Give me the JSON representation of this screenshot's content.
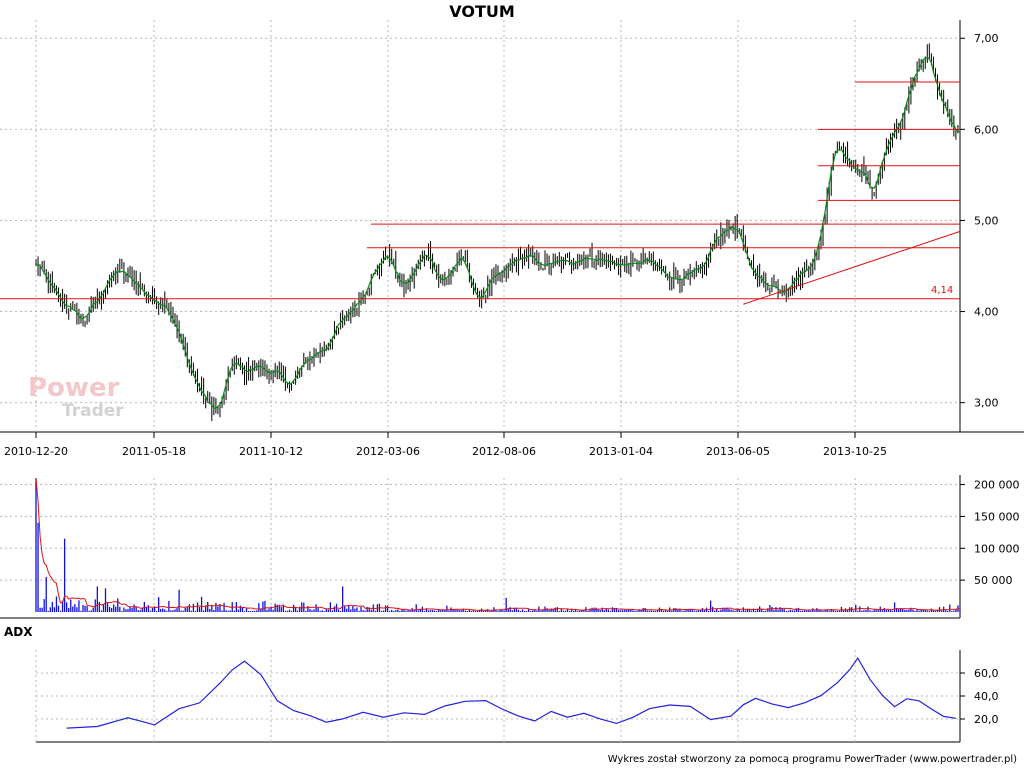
{
  "chart_data": [
    {
      "type": "candlestick",
      "title": "VOTUM",
      "x_ticks": [
        "2010-12-20",
        "2011-05-18",
        "2011-10-12",
        "2012-03-06",
        "2012-08-06",
        "2013-01-04",
        "2013-06-05",
        "2013-10-25"
      ],
      "y_ticks": [
        "3,00",
        "4,00",
        "5,00",
        "6,00",
        "7,00"
      ],
      "ylim": [
        2.7,
        7.2
      ],
      "grid": true,
      "close_path": [
        [
          0,
          4.55
        ],
        [
          8,
          4.25
        ],
        [
          16,
          4.05
        ],
        [
          24,
          3.9
        ],
        [
          32,
          4.2
        ],
        [
          40,
          4.45
        ],
        [
          48,
          4.35
        ],
        [
          56,
          4.15
        ],
        [
          64,
          4.1
        ],
        [
          70,
          3.75
        ],
        [
          78,
          3.25
        ],
        [
          84,
          3.0
        ],
        [
          90,
          2.9
        ],
        [
          96,
          3.45
        ],
        [
          102,
          3.35
        ],
        [
          110,
          3.4
        ],
        [
          118,
          3.3
        ],
        [
          126,
          3.2
        ],
        [
          132,
          3.45
        ],
        [
          138,
          3.55
        ],
        [
          144,
          3.65
        ],
        [
          150,
          3.9
        ],
        [
          156,
          4.05
        ],
        [
          160,
          4.2
        ],
        [
          164,
          4.35
        ],
        [
          172,
          4.65
        ],
        [
          180,
          4.25
        ],
        [
          186,
          4.45
        ],
        [
          192,
          4.7
        ],
        [
          198,
          4.3
        ],
        [
          204,
          4.45
        ],
        [
          210,
          4.6
        ],
        [
          216,
          4.1
        ],
        [
          222,
          4.3
        ],
        [
          228,
          4.4
        ],
        [
          234,
          4.55
        ],
        [
          240,
          4.6
        ],
        [
          250,
          4.5
        ],
        [
          260,
          4.55
        ],
        [
          270,
          4.6
        ],
        [
          280,
          4.55
        ],
        [
          290,
          4.5
        ],
        [
          300,
          4.55
        ],
        [
          310,
          4.4
        ],
        [
          318,
          4.35
        ],
        [
          326,
          4.45
        ],
        [
          334,
          4.85
        ],
        [
          342,
          4.95
        ],
        [
          348,
          4.6
        ],
        [
          354,
          4.35
        ],
        [
          360,
          4.3
        ],
        [
          366,
          4.25
        ],
        [
          372,
          4.35
        ],
        [
          378,
          4.5
        ],
        [
          382,
          4.6
        ],
        [
          386,
          5.1
        ],
        [
          390,
          5.75
        ],
        [
          394,
          5.85
        ],
        [
          398,
          5.6
        ],
        [
          404,
          5.55
        ],
        [
          410,
          5.3
        ],
        [
          416,
          5.8
        ],
        [
          422,
          6.0
        ],
        [
          428,
          6.45
        ],
        [
          432,
          6.65
        ],
        [
          436,
          6.85
        ],
        [
          440,
          6.5
        ],
        [
          444,
          6.3
        ],
        [
          448,
          6.1
        ],
        [
          452,
          5.95
        ]
      ],
      "levels": [
        4.14,
        4.7,
        4.96,
        5.22,
        5.6,
        6.0,
        6.52
      ],
      "trendline": {
        "from": [
          346,
          4.08
        ],
        "to": [
          452,
          4.88
        ]
      },
      "annotation": "4,14"
    },
    {
      "type": "bar",
      "name": "volume",
      "y_ticks": [
        "50 000",
        "100 000",
        "150 000",
        "200 000"
      ],
      "ylim": [
        0,
        215000
      ],
      "spikes": [
        [
          0,
          210000
        ],
        [
          1,
          140000
        ],
        [
          14,
          115000
        ],
        [
          5,
          55000
        ],
        [
          30,
          40000
        ],
        [
          70,
          35000
        ],
        [
          150,
          40000
        ],
        [
          230,
          22000
        ],
        [
          330,
          18000
        ],
        [
          420,
          15000
        ]
      ]
    },
    {
      "type": "line",
      "name": "ADX",
      "y_ticks": [
        "20,0",
        "40,0",
        "60,0"
      ],
      "ylim": [
        0,
        80
      ],
      "points": [
        [
          15,
          12
        ],
        [
          30,
          14
        ],
        [
          45,
          22
        ],
        [
          58,
          15
        ],
        [
          70,
          28
        ],
        [
          80,
          35
        ],
        [
          90,
          52
        ],
        [
          96,
          62
        ],
        [
          102,
          70
        ],
        [
          110,
          58
        ],
        [
          118,
          35
        ],
        [
          126,
          28
        ],
        [
          134,
          22
        ],
        [
          142,
          18
        ],
        [
          150,
          20
        ],
        [
          160,
          25
        ],
        [
          170,
          22
        ],
        [
          180,
          26
        ],
        [
          190,
          24
        ],
        [
          200,
          32
        ],
        [
          210,
          36
        ],
        [
          220,
          35
        ],
        [
          228,
          28
        ],
        [
          236,
          22
        ],
        [
          244,
          18
        ],
        [
          252,
          26
        ],
        [
          260,
          22
        ],
        [
          268,
          24
        ],
        [
          276,
          20
        ],
        [
          284,
          16
        ],
        [
          292,
          22
        ],
        [
          300,
          28
        ],
        [
          310,
          32
        ],
        [
          320,
          30
        ],
        [
          330,
          20
        ],
        [
          340,
          22
        ],
        [
          346,
          32
        ],
        [
          352,
          38
        ],
        [
          360,
          34
        ],
        [
          368,
          30
        ],
        [
          376,
          34
        ],
        [
          384,
          40
        ],
        [
          392,
          52
        ],
        [
          398,
          62
        ],
        [
          402,
          72
        ],
        [
          408,
          55
        ],
        [
          414,
          40
        ],
        [
          420,
          30
        ],
        [
          426,
          38
        ],
        [
          432,
          36
        ],
        [
          438,
          28
        ],
        [
          444,
          22
        ],
        [
          450,
          20
        ]
      ]
    }
  ],
  "labels": {
    "panel_adx": "ADX",
    "watermark_line1": "Power",
    "watermark_line2": "Trader",
    "footer": "Wykres został stworzony za pomocą programu PowerTrader (www.powertrader.pl)"
  },
  "colors": {
    "candle": "#000000",
    "close_line": "#0a8a1a",
    "level": "#e01010",
    "volume": "#1010e0",
    "volume_avg": "#e01010",
    "adx": "#2222dd",
    "grid": "#b8b8b8"
  }
}
